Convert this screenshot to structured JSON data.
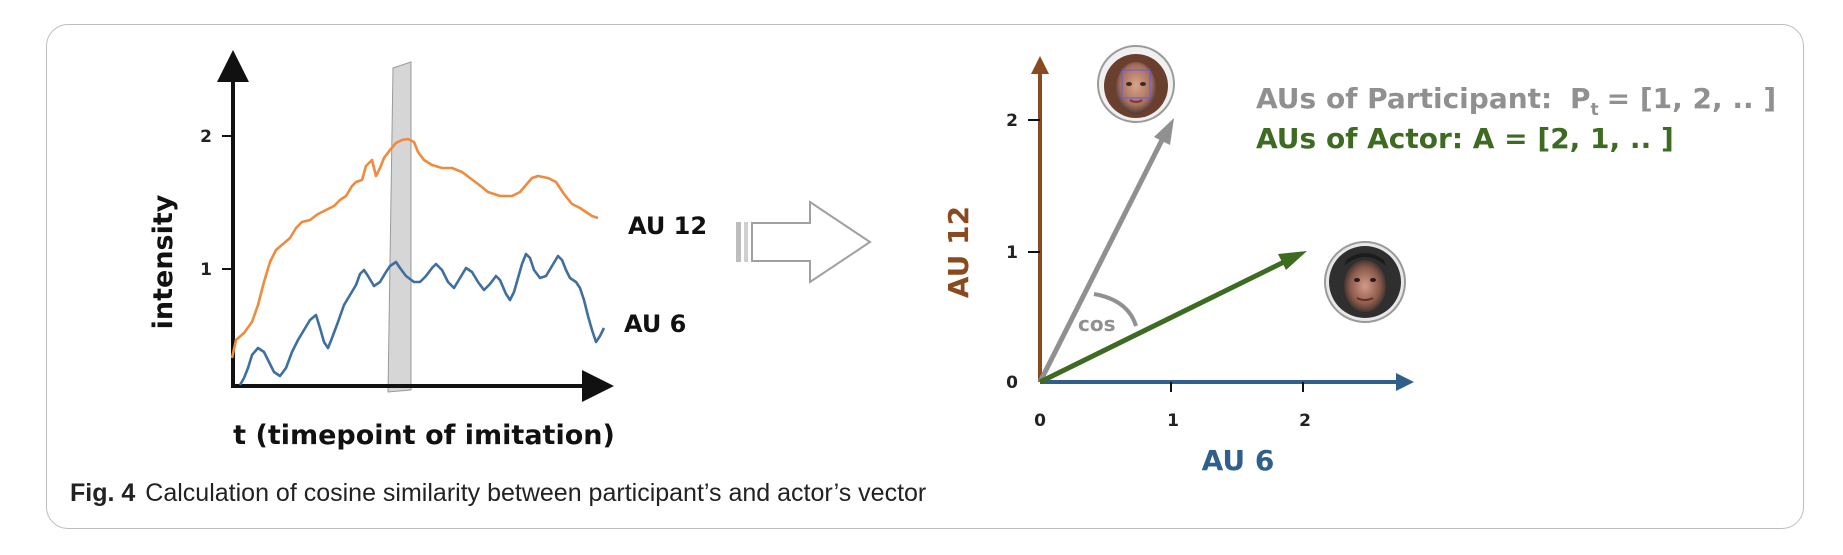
{
  "left_plot": {
    "y_label": "intensity",
    "x_label": "t (timepoint of imitation)",
    "y_ticks": [
      "1",
      "2"
    ],
    "au12_label": "AU 12",
    "au6_label": "AU 6",
    "au12_color": "#f08a3c",
    "au6_color": "#3e6f9f"
  },
  "right_plot": {
    "x_label": "AU 6",
    "y_label": "AU 12",
    "x_ticks": [
      "0",
      "1",
      "2"
    ],
    "y_ticks": [
      "0",
      "1",
      "2"
    ],
    "angle_label": "cos",
    "participant_text": "AUs of Participant:",
    "participant_symbol": "P",
    "participant_subscript": "t",
    "participant_vector": "= [1, 2, .. ]",
    "actor_text": "AUs of Actor: A = [2, 1, .. ]",
    "participant_color": "#909090",
    "actor_color": "#3d6b22",
    "x_axis_color": "#2f5f8a",
    "y_axis_color": "#8a4a1f"
  },
  "caption": {
    "label": "Fig. 4",
    "text": "Calculation of cosine similarity between participant’s and actor’s vector"
  }
}
